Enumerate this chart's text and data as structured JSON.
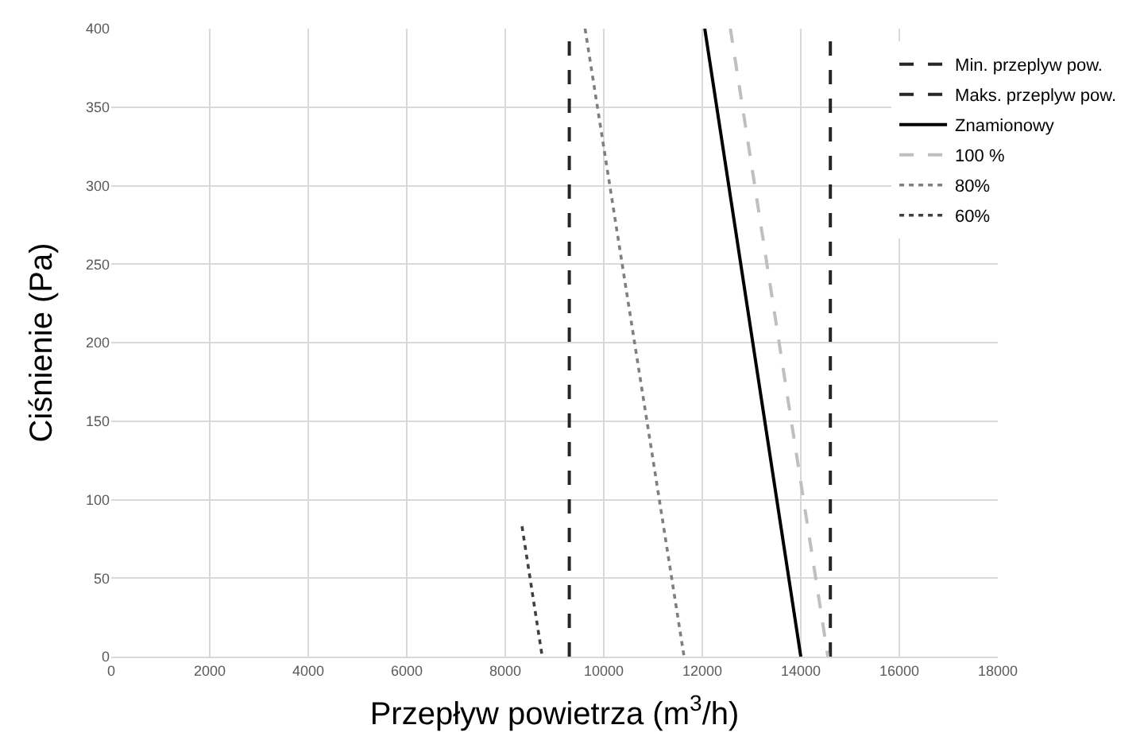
{
  "chart_data": {
    "type": "line",
    "xlabel": "Przepływ powietrza (m$^{3}$/h)",
    "ylabel": "Ciśnienie (Pa)",
    "xlim": [
      0,
      18000
    ],
    "xticks": [
      0,
      2000,
      4000,
      6000,
      8000,
      10000,
      12000,
      14000,
      16000,
      18000
    ],
    "ylim": [
      0,
      400
    ],
    "yticks": [
      0,
      50,
      100,
      150,
      200,
      250,
      300,
      350,
      400
    ],
    "grid": true,
    "legend": "top right",
    "marker": "none",
    "series": [
      {
        "name": "Min. przeplyw pow.",
        "color": "#262626",
        "line_style": "dashed",
        "x": [
          9300,
          9300
        ],
        "values": [
          0,
          400
        ]
      },
      {
        "name": "Maks. przeplyw pow.",
        "color": "#262626",
        "line_style": "dashed",
        "x": [
          14600,
          14600
        ],
        "values": [
          0,
          400
        ]
      },
      {
        "name": "Znamionowy",
        "color": "#000000",
        "line_style": "solid",
        "x": [
          12050,
          14000
        ],
        "values": [
          400,
          0
        ]
      },
      {
        "name": "100 %",
        "color": "#bfbfbf",
        "line_style": "dashed",
        "x": [
          12570,
          14550
        ],
        "values": [
          400,
          0
        ]
      },
      {
        "name": "80%",
        "color": "#7f7f7f",
        "line_style": "dotted",
        "x": [
          9620,
          11630
        ],
        "values": [
          400,
          0
        ]
      },
      {
        "name": "60%",
        "color": "#404040",
        "line_style": "dotted",
        "x": [
          8340,
          8750
        ],
        "values": [
          83,
          0
        ]
      }
    ]
  }
}
